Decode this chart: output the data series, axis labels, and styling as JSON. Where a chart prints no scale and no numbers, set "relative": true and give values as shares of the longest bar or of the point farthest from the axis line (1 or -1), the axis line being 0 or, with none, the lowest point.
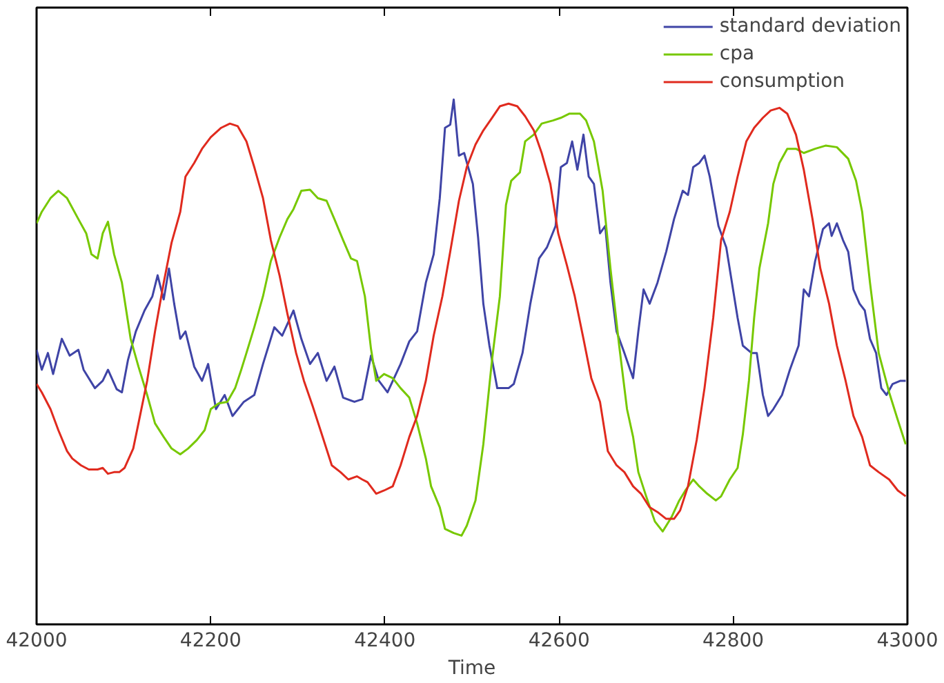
{
  "chart_data": {
    "type": "line",
    "xlabel": "Time",
    "relative": true,
    "xlim": [
      42000,
      43000
    ],
    "xticks": [
      42000,
      42200,
      42400,
      42600,
      42800,
      43000
    ],
    "grid": false,
    "legend": "top right",
    "marker": "none",
    "line_style": "solid",
    "series": [
      {
        "name": "standard deviation",
        "color": "#3f44a6",
        "x": [
          42000,
          42006,
          42013,
          42019,
          42029,
          42038,
          42048,
          42054,
          42067,
          42076,
          42082,
          42092,
          42098,
          42105,
          42114,
          42124,
          42133,
          42139,
          42146,
          42152,
          42158,
          42165,
          42171,
          42181,
          42190,
          42197,
          42206,
          42216,
          42225,
          42238,
          42250,
          42260,
          42273,
          42282,
          42295,
          42304,
          42314,
          42323,
          42333,
          42342,
          42352,
          42365,
          42374,
          42384,
          42393,
          42403,
          42418,
          42428,
          42437,
          42447,
          42456,
          42463,
          42469,
          42475,
          42479,
          42485,
          42491,
          42501,
          42507,
          42513,
          42520,
          42529,
          42542,
          42548,
          42558,
          42567,
          42577,
          42586,
          42596,
          42602,
          42609,
          42615,
          42621,
          42628,
          42634,
          42640,
          42647,
          42653,
          42659,
          42666,
          42675,
          42685,
          42691,
          42697,
          42704,
          42713,
          42723,
          42732,
          42742,
          42748,
          42754,
          42761,
          42767,
          42773,
          42783,
          42792,
          42805,
          42811,
          42821,
          42827,
          42834,
          42840,
          42846,
          42856,
          42865,
          42875,
          42881,
          42887,
          42894,
          42903,
          42910,
          42913,
          42919,
          42926,
          42932,
          42938,
          42945,
          42951,
          42957,
          42964,
          42970,
          42976,
          42983,
          42992,
          42998
        ],
        "values": [
          0.523,
          0.485,
          0.517,
          0.477,
          0.544,
          0.512,
          0.523,
          0.485,
          0.45,
          0.464,
          0.485,
          0.448,
          0.442,
          0.504,
          0.558,
          0.598,
          0.625,
          0.665,
          0.619,
          0.678,
          0.611,
          0.544,
          0.558,
          0.491,
          0.464,
          0.496,
          0.41,
          0.437,
          0.397,
          0.424,
          0.437,
          0.496,
          0.566,
          0.55,
          0.598,
          0.544,
          0.496,
          0.517,
          0.464,
          0.491,
          0.432,
          0.424,
          0.429,
          0.512,
          0.464,
          0.442,
          0.496,
          0.539,
          0.558,
          0.651,
          0.705,
          0.812,
          0.946,
          0.952,
          1.0,
          0.893,
          0.898,
          0.839,
          0.737,
          0.611,
          0.531,
          0.45,
          0.45,
          0.458,
          0.517,
          0.611,
          0.697,
          0.718,
          0.759,
          0.871,
          0.879,
          0.92,
          0.866,
          0.933,
          0.853,
          0.839,
          0.745,
          0.759,
          0.651,
          0.558,
          0.517,
          0.469,
          0.558,
          0.638,
          0.611,
          0.651,
          0.71,
          0.772,
          0.826,
          0.818,
          0.871,
          0.879,
          0.893,
          0.853,
          0.759,
          0.718,
          0.584,
          0.531,
          0.517,
          0.517,
          0.437,
          0.397,
          0.41,
          0.437,
          0.485,
          0.531,
          0.638,
          0.625,
          0.692,
          0.753,
          0.764,
          0.74,
          0.764,
          0.732,
          0.71,
          0.638,
          0.611,
          0.598,
          0.544,
          0.517,
          0.45,
          0.437,
          0.458,
          0.464,
          0.464
        ]
      },
      {
        "name": "cpa",
        "color": "#77c800",
        "x": [
          42000,
          42006,
          42016,
          42025,
          42035,
          42048,
          42057,
          42063,
          42070,
          42076,
          42082,
          42089,
          42098,
          42108,
          42117,
          42127,
          42136,
          42146,
          42155,
          42165,
          42174,
          42184,
          42193,
          42200,
          42209,
          42219,
          42228,
          42235,
          42241,
          42250,
          42260,
          42269,
          42279,
          42288,
          42295,
          42304,
          42314,
          42323,
          42333,
          42342,
          42352,
          42361,
          42368,
          42377,
          42384,
          42390,
          42399,
          42409,
          42418,
          42428,
          42437,
          42447,
          42453,
          42463,
          42469,
          42479,
          42488,
          42494,
          42504,
          42513,
          42523,
          42532,
          42539,
          42545,
          42555,
          42561,
          42571,
          42580,
          42593,
          42602,
          42612,
          42624,
          42631,
          42640,
          42650,
          42659,
          42669,
          42678,
          42685,
          42691,
          42700,
          42710,
          42719,
          42729,
          42738,
          42745,
          42754,
          42761,
          42770,
          42780,
          42786,
          42796,
          42805,
          42811,
          42818,
          42824,
          42830,
          42840,
          42846,
          42853,
          42862,
          42872,
          42881,
          42894,
          42906,
          42919,
          42932,
          42941,
          42948,
          42957,
          42967,
          42979,
          42989,
          42998
        ],
        "values": [
          0.764,
          0.786,
          0.812,
          0.826,
          0.812,
          0.772,
          0.745,
          0.705,
          0.697,
          0.745,
          0.767,
          0.705,
          0.651,
          0.544,
          0.491,
          0.437,
          0.383,
          0.357,
          0.335,
          0.324,
          0.335,
          0.351,
          0.37,
          0.41,
          0.421,
          0.424,
          0.45,
          0.485,
          0.517,
          0.566,
          0.625,
          0.692,
          0.737,
          0.772,
          0.791,
          0.826,
          0.828,
          0.812,
          0.807,
          0.772,
          0.732,
          0.697,
          0.692,
          0.625,
          0.525,
          0.464,
          0.477,
          0.469,
          0.45,
          0.432,
          0.383,
          0.316,
          0.263,
          0.223,
          0.182,
          0.174,
          0.169,
          0.188,
          0.236,
          0.343,
          0.504,
          0.625,
          0.799,
          0.845,
          0.861,
          0.92,
          0.933,
          0.954,
          0.96,
          0.965,
          0.973,
          0.973,
          0.96,
          0.92,
          0.826,
          0.678,
          0.531,
          0.41,
          0.357,
          0.29,
          0.244,
          0.196,
          0.177,
          0.204,
          0.236,
          0.255,
          0.276,
          0.263,
          0.249,
          0.236,
          0.244,
          0.276,
          0.298,
          0.362,
          0.464,
          0.584,
          0.678,
          0.764,
          0.839,
          0.879,
          0.906,
          0.906,
          0.898,
          0.906,
          0.912,
          0.909,
          0.887,
          0.845,
          0.786,
          0.651,
          0.517,
          0.442,
          0.389,
          0.343
        ]
      },
      {
        "name": "consumption",
        "color": "#e02a1e",
        "x": [
          42000,
          42006,
          42016,
          42025,
          42035,
          42041,
          42051,
          42060,
          42070,
          42076,
          42082,
          42089,
          42095,
          42101,
          42111,
          42117,
          42127,
          42136,
          42146,
          42155,
          42165,
          42171,
          42181,
          42190,
          42200,
          42212,
          42222,
          42231,
          42241,
          42250,
          42260,
          42269,
          42279,
          42288,
          42298,
          42307,
          42317,
          42326,
          42339,
          42349,
          42358,
          42368,
          42374,
          42380,
          42390,
          42399,
          42409,
          42418,
          42428,
          42437,
          42447,
          42456,
          42466,
          42475,
          42485,
          42494,
          42504,
          42513,
          42523,
          42532,
          42542,
          42552,
          42561,
          42571,
          42580,
          42590,
          42599,
          42609,
          42618,
          42628,
          42637,
          42647,
          42656,
          42666,
          42675,
          42685,
          42694,
          42704,
          42713,
          42723,
          42732,
          42739,
          42748,
          42758,
          42767,
          42777,
          42786,
          42796,
          42805,
          42815,
          42824,
          42834,
          42843,
          42853,
          42862,
          42872,
          42881,
          42891,
          42900,
          42910,
          42919,
          42929,
          42938,
          42948,
          42957,
          42967,
          42979,
          42989,
          42998
        ],
        "values": [
          0.458,
          0.442,
          0.41,
          0.37,
          0.33,
          0.316,
          0.303,
          0.295,
          0.295,
          0.298,
          0.287,
          0.29,
          0.29,
          0.298,
          0.335,
          0.383,
          0.464,
          0.558,
          0.651,
          0.727,
          0.786,
          0.853,
          0.879,
          0.906,
          0.928,
          0.946,
          0.954,
          0.949,
          0.92,
          0.871,
          0.812,
          0.732,
          0.665,
          0.592,
          0.517,
          0.464,
          0.416,
          0.37,
          0.303,
          0.29,
          0.276,
          0.282,
          0.276,
          0.271,
          0.249,
          0.255,
          0.263,
          0.303,
          0.357,
          0.397,
          0.464,
          0.55,
          0.625,
          0.71,
          0.807,
          0.871,
          0.914,
          0.941,
          0.965,
          0.987,
          0.992,
          0.987,
          0.968,
          0.941,
          0.898,
          0.839,
          0.745,
          0.684,
          0.625,
          0.544,
          0.469,
          0.424,
          0.33,
          0.303,
          0.29,
          0.263,
          0.249,
          0.223,
          0.214,
          0.201,
          0.201,
          0.217,
          0.263,
          0.351,
          0.45,
          0.584,
          0.732,
          0.786,
          0.853,
          0.92,
          0.946,
          0.965,
          0.979,
          0.984,
          0.973,
          0.933,
          0.866,
          0.772,
          0.678,
          0.611,
          0.531,
          0.464,
          0.397,
          0.357,
          0.303,
          0.29,
          0.276,
          0.255,
          0.244
        ]
      }
    ]
  }
}
